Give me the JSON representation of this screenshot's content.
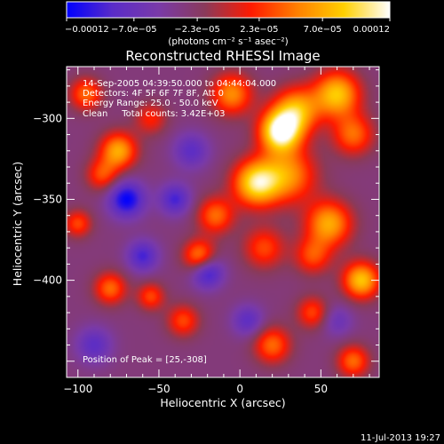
{
  "chart_data": {
    "type": "heatmap",
    "title": "Reconstructed RHESSI Image",
    "xlabel": "Heliocentric X (arcsec)",
    "ylabel": "Heliocentric Y (arcsec)",
    "xlim": [
      -107,
      86
    ],
    "ylim": [
      -460,
      -268
    ],
    "x_ticks": [
      -100,
      -50,
      0,
      50
    ],
    "x_tick_labels": [
      "−100",
      "−50",
      "0",
      "50"
    ],
    "y_ticks": [
      -300,
      -350,
      -400
    ],
    "y_tick_labels": [
      "−300",
      "−350",
      "−400"
    ],
    "colorbar": {
      "min": -0.00012,
      "max": 0.00012,
      "tick_labels": [
        "−0.00012",
        "−7.0e−05",
        "−2.3e−05",
        "2.3e−05",
        "7.0e−05",
        "0.00012"
      ],
      "tick_values": [
        -0.00012,
        -7e-05,
        -2.3e-05,
        2.3e-05,
        7e-05,
        0.00012
      ],
      "units": "(photons cm⁻² s⁻¹ asec⁻²)",
      "colors": [
        "#0000ff",
        "#5a2cc8",
        "#7a3aa8",
        "#8a3a5a",
        "#ff1a00",
        "#ff8000",
        "#ffd000",
        "#ffffff"
      ]
    },
    "annotations": [
      "14-Sep-2005 04:39:50.000 to 04:44:04.000",
      "Detectors: 4F 5F 6F 7F 8F, Att 0",
      "Energy Range: 25.0 - 50.0 keV",
      "Clean     Total counts: 3.42E+03"
    ],
    "peak_label": "Position of Peak = [25,-308]",
    "peak": {
      "x": 25,
      "y": -308
    },
    "sources": [
      {
        "x": 25,
        "y": -308,
        "flux": 0.00012,
        "sigma": 9
      },
      {
        "x": 35,
        "y": -295,
        "flux": 8e-05,
        "sigma": 10
      },
      {
        "x": 10,
        "y": -340,
        "flux": 0.0001,
        "sigma": 10
      },
      {
        "x": 30,
        "y": -335,
        "flux": 7e-05,
        "sigma": 12
      },
      {
        "x": -15,
        "y": -360,
        "flux": 6e-05,
        "sigma": 8
      },
      {
        "x": -5,
        "y": -285,
        "flux": 7e-05,
        "sigma": 9
      },
      {
        "x": 60,
        "y": -285,
        "flux": 9e-05,
        "sigma": 10
      },
      {
        "x": 70,
        "y": -310,
        "flux": 6e-05,
        "sigma": 9
      },
      {
        "x": 55,
        "y": -365,
        "flux": 8e-05,
        "sigma": 10
      },
      {
        "x": 75,
        "y": -400,
        "flux": 9e-05,
        "sigma": 8
      },
      {
        "x": 45,
        "y": -385,
        "flux": 5e-05,
        "sigma": 8
      },
      {
        "x": 15,
        "y": -380,
        "flux": 5e-05,
        "sigma": 9
      },
      {
        "x": -25,
        "y": -385,
        "flux": 7e-05,
        "sigma": 7
      },
      {
        "x": -75,
        "y": -320,
        "flux": 8e-05,
        "sigma": 8
      },
      {
        "x": -95,
        "y": -285,
        "flux": 6e-05,
        "sigma": 7
      },
      {
        "x": -85,
        "y": -335,
        "flux": 5e-05,
        "sigma": 7
      },
      {
        "x": -55,
        "y": -300,
        "flux": 4e-05,
        "sigma": 7
      },
      {
        "x": -80,
        "y": -405,
        "flux": 6e-05,
        "sigma": 7
      },
      {
        "x": -55,
        "y": -410,
        "flux": 5e-05,
        "sigma": 6
      },
      {
        "x": -35,
        "y": -425,
        "flux": 5e-05,
        "sigma": 7
      },
      {
        "x": 20,
        "y": -440,
        "flux": 6e-05,
        "sigma": 8
      },
      {
        "x": 45,
        "y": -420,
        "flux": 5e-05,
        "sigma": 7
      },
      {
        "x": 70,
        "y": -450,
        "flux": 6e-05,
        "sigma": 7
      },
      {
        "x": -100,
        "y": -365,
        "flux": 5e-05,
        "sigma": 6
      },
      {
        "x": -70,
        "y": -350,
        "flux": -7e-05,
        "sigma": 8
      },
      {
        "x": -40,
        "y": -350,
        "flux": -5e-05,
        "sigma": 7
      },
      {
        "x": -20,
        "y": -395,
        "flux": -6e-05,
        "sigma": 7
      },
      {
        "x": -60,
        "y": -385,
        "flux": -5e-05,
        "sigma": 7
      },
      {
        "x": 5,
        "y": -425,
        "flux": -4e-05,
        "sigma": 7
      },
      {
        "x": -30,
        "y": -320,
        "flux": -4e-05,
        "sigma": 8
      },
      {
        "x": -90,
        "y": -440,
        "flux": -4e-05,
        "sigma": 8
      },
      {
        "x": 60,
        "y": -425,
        "flux": -3e-05,
        "sigma": 7
      }
    ]
  },
  "footer": {
    "timestamp": "11-Jul-2013 19:27"
  }
}
